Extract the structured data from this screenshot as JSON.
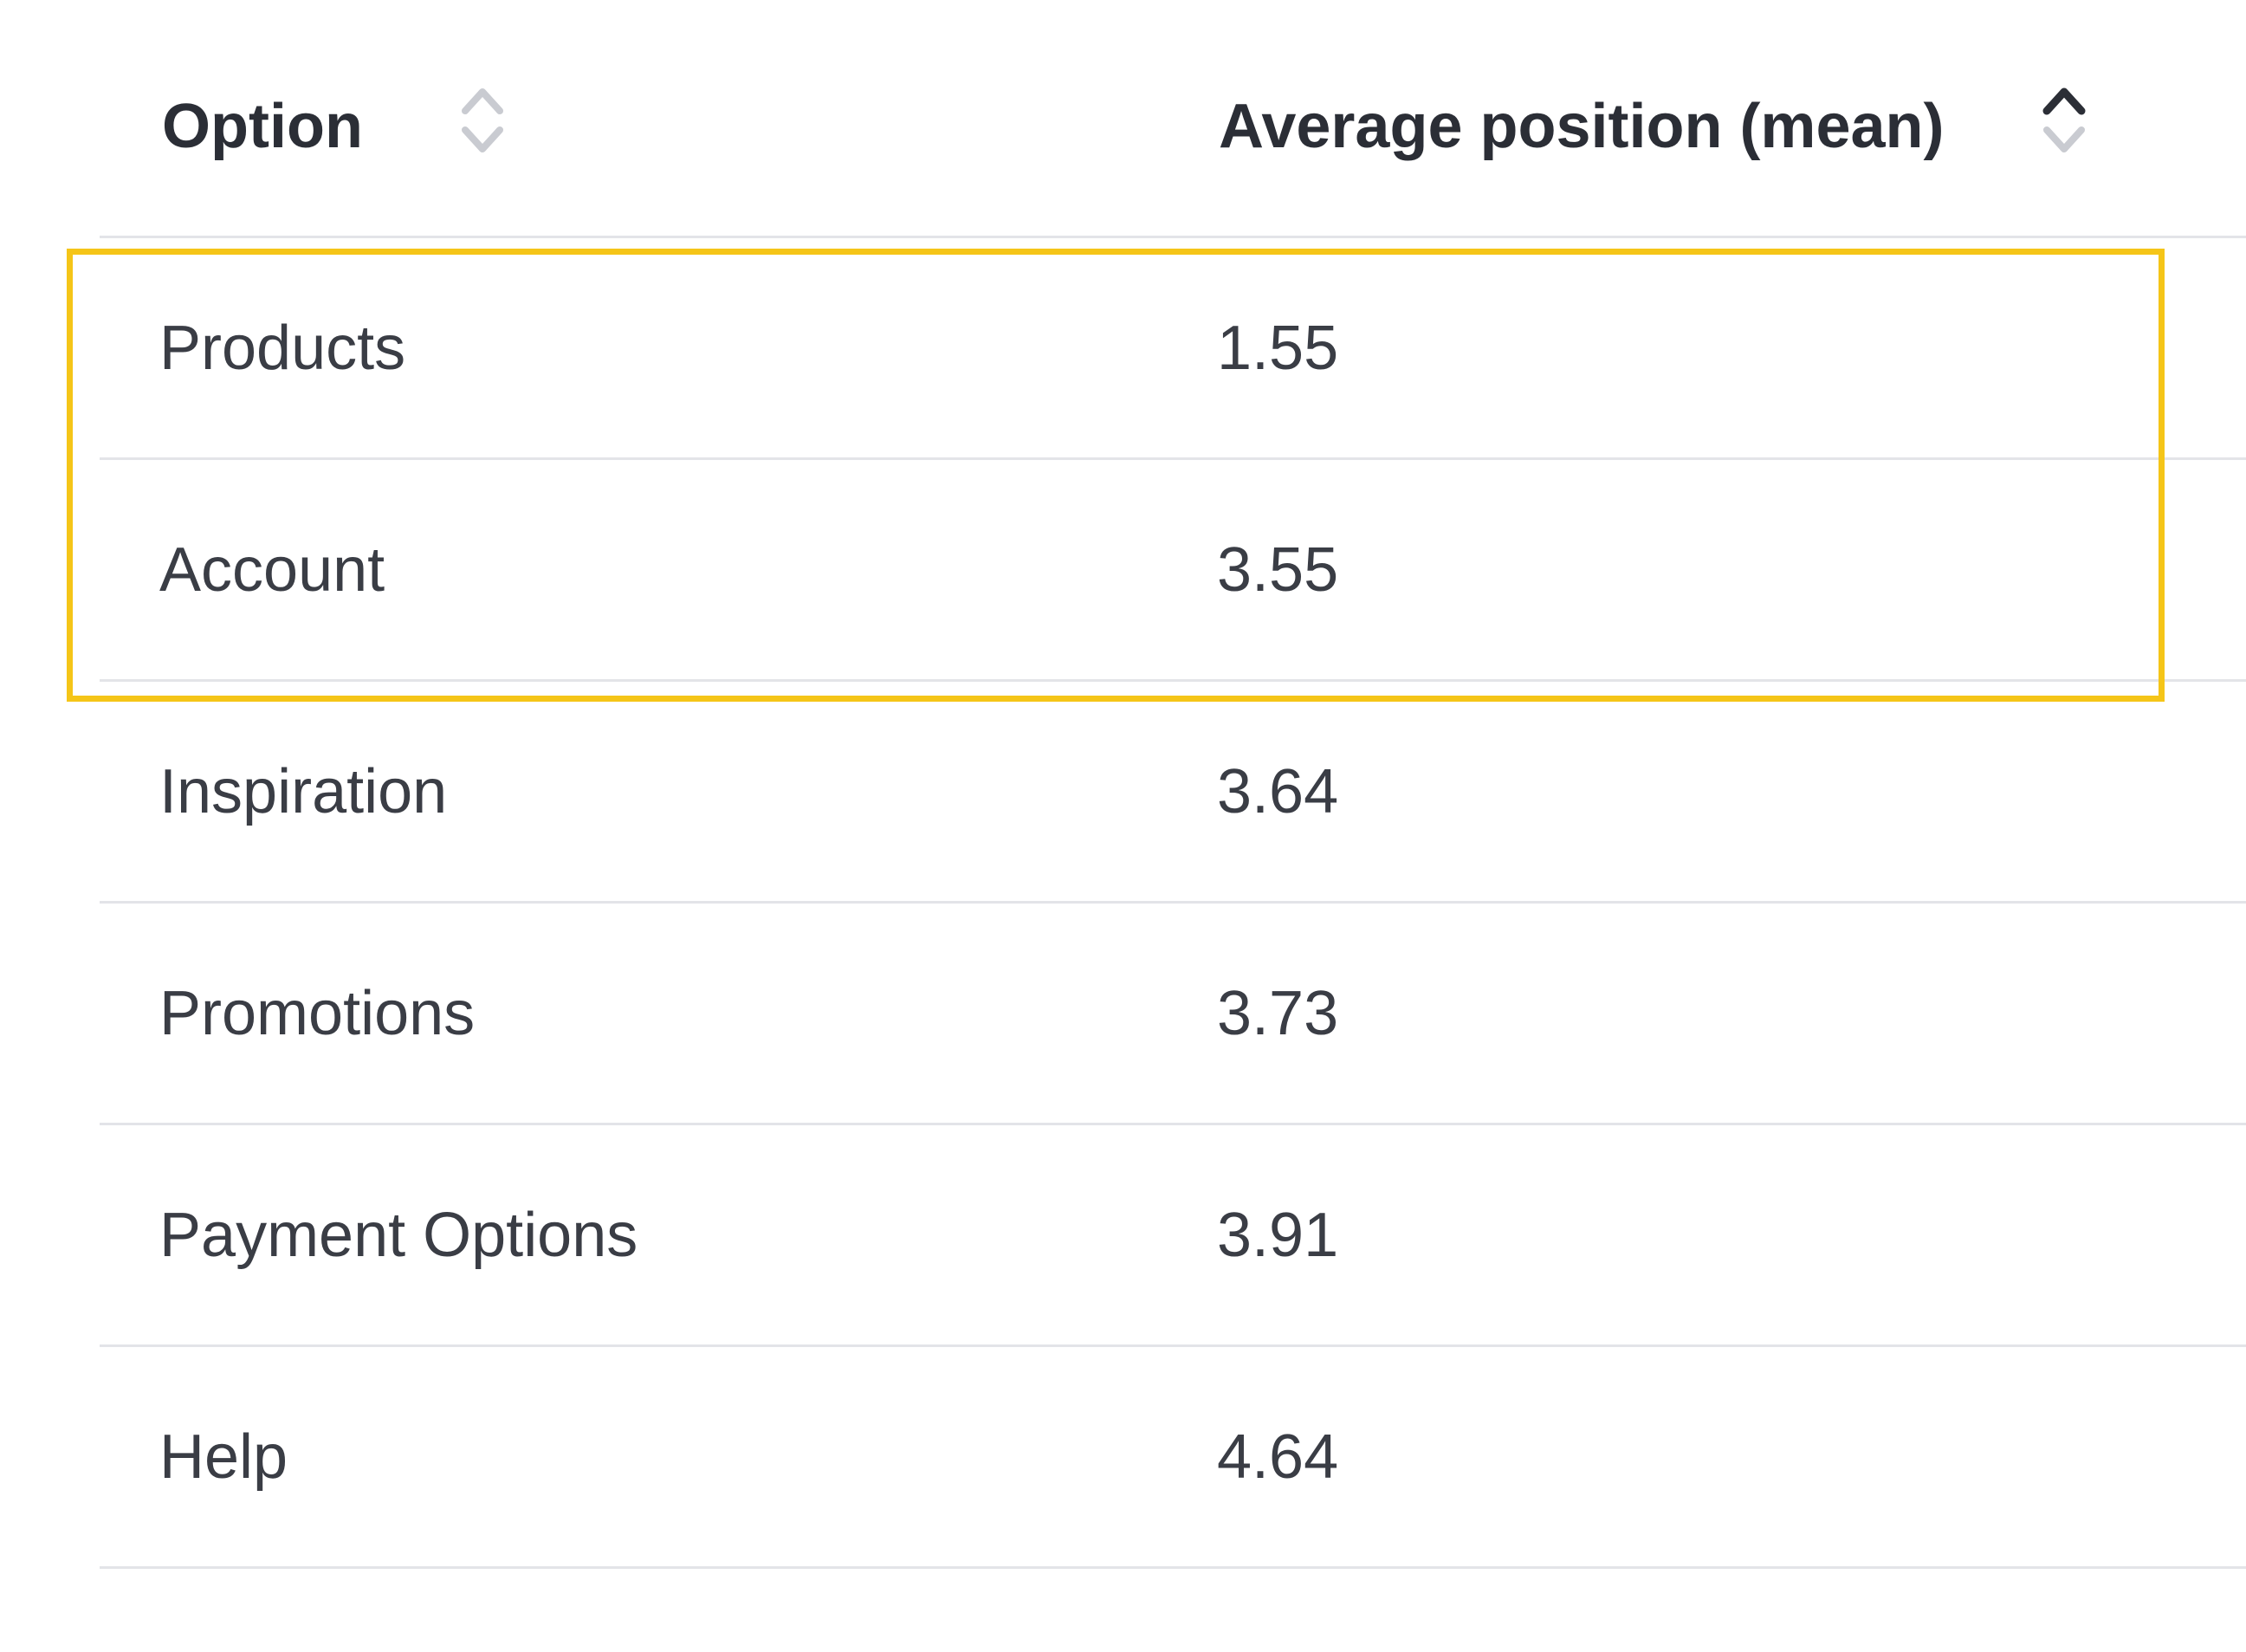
{
  "table": {
    "columns": [
      {
        "label": "Option",
        "sort_icon": "sort-unsorted-icon"
      },
      {
        "label": "Average position (mean)",
        "sort_icon": "sort-asc-active-icon"
      }
    ],
    "rows": [
      {
        "option": "Products",
        "value": "1.55"
      },
      {
        "option": "Account",
        "value": "3.55"
      },
      {
        "option": "Inspiration",
        "value": "3.64"
      },
      {
        "option": "Promotions",
        "value": "3.73"
      },
      {
        "option": "Payment Options",
        "value": "3.91"
      },
      {
        "option": "Help",
        "value": "4.64"
      }
    ]
  },
  "highlight": {
    "color": "#f5c518",
    "rows_highlighted": [
      "Products",
      "Account"
    ]
  },
  "colors": {
    "text": "#3a3d45",
    "header_text": "#2b2e36",
    "divider": "#e3e4e8",
    "sort_inactive": "#c9cbd1",
    "sort_active": "#2b2e36"
  }
}
